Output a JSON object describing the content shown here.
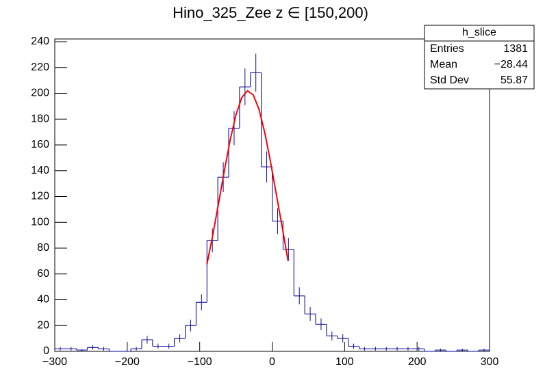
{
  "chart_data": {
    "type": "histogram",
    "title": "Hino_325_Zee z  ∈ [150,200)",
    "bins": [
      -300,
      -285,
      -270,
      -255,
      -240,
      -225,
      -210,
      -195,
      -180,
      -165,
      -150,
      -135,
      -120,
      -105,
      -90,
      -75,
      -60,
      -45,
      -30,
      -15,
      0,
      15,
      30,
      45,
      60,
      75,
      90,
      105,
      120,
      135,
      150,
      165,
      180,
      195,
      210,
      225,
      240,
      255,
      270,
      285,
      300
    ],
    "values": [
      2,
      2,
      1,
      3,
      2,
      0,
      0,
      2,
      9,
      4,
      4,
      10,
      20,
      38,
      86,
      135,
      173,
      205,
      216,
      143,
      101,
      79,
      43,
      29,
      21,
      12,
      10,
      4,
      2,
      2,
      2,
      2,
      2,
      2,
      0,
      1,
      0,
      1,
      0,
      1
    ],
    "errors": [
      1.4,
      1.4,
      1,
      1.7,
      1.4,
      0,
      0,
      1.4,
      3,
      2,
      2,
      3.2,
      4.5,
      6.2,
      9.3,
      11.6,
      13.2,
      14.3,
      14.7,
      12,
      10,
      8.9,
      6.6,
      5.4,
      4.6,
      3.5,
      3.2,
      2,
      1.4,
      1.4,
      1.4,
      1.4,
      1.4,
      1.4,
      0,
      1,
      0,
      1,
      0,
      1
    ],
    "color": "#000099",
    "fit": {
      "color": "#ff0000",
      "x": [
        -90,
        -82,
        -74,
        -66,
        -58,
        -50,
        -42,
        -34,
        -26,
        -18,
        -10,
        -2,
        6,
        14,
        22
      ],
      "values": [
        67.5,
        89.9,
        114.6,
        139.9,
        163.6,
        183.2,
        196.6,
        202,
        198.7,
        187.3,
        169,
        146.1,
        120.9,
        95.9,
        70
      ]
    },
    "xlim": [
      -300,
      300
    ],
    "xticks": [
      {
        "value": -300,
        "label": "−300"
      },
      {
        "value": -200,
        "label": "−200"
      },
      {
        "value": -100,
        "label": "−100"
      },
      0,
      100,
      200,
      300
    ],
    "ylim": [
      0,
      240
    ],
    "yticks": [
      0,
      20,
      40,
      60,
      80,
      100,
      120,
      140,
      160,
      180,
      200,
      220,
      240
    ],
    "stats": {
      "name": "h_slice",
      "rows": [
        {
          "name": "Entries",
          "value": 1381
        },
        {
          "name": "Mean",
          "value": {
            "value": -28.44,
            "label": "−28.44"
          }
        },
        {
          "name": "Std Dev",
          "value": 55.87
        }
      ]
    }
  }
}
